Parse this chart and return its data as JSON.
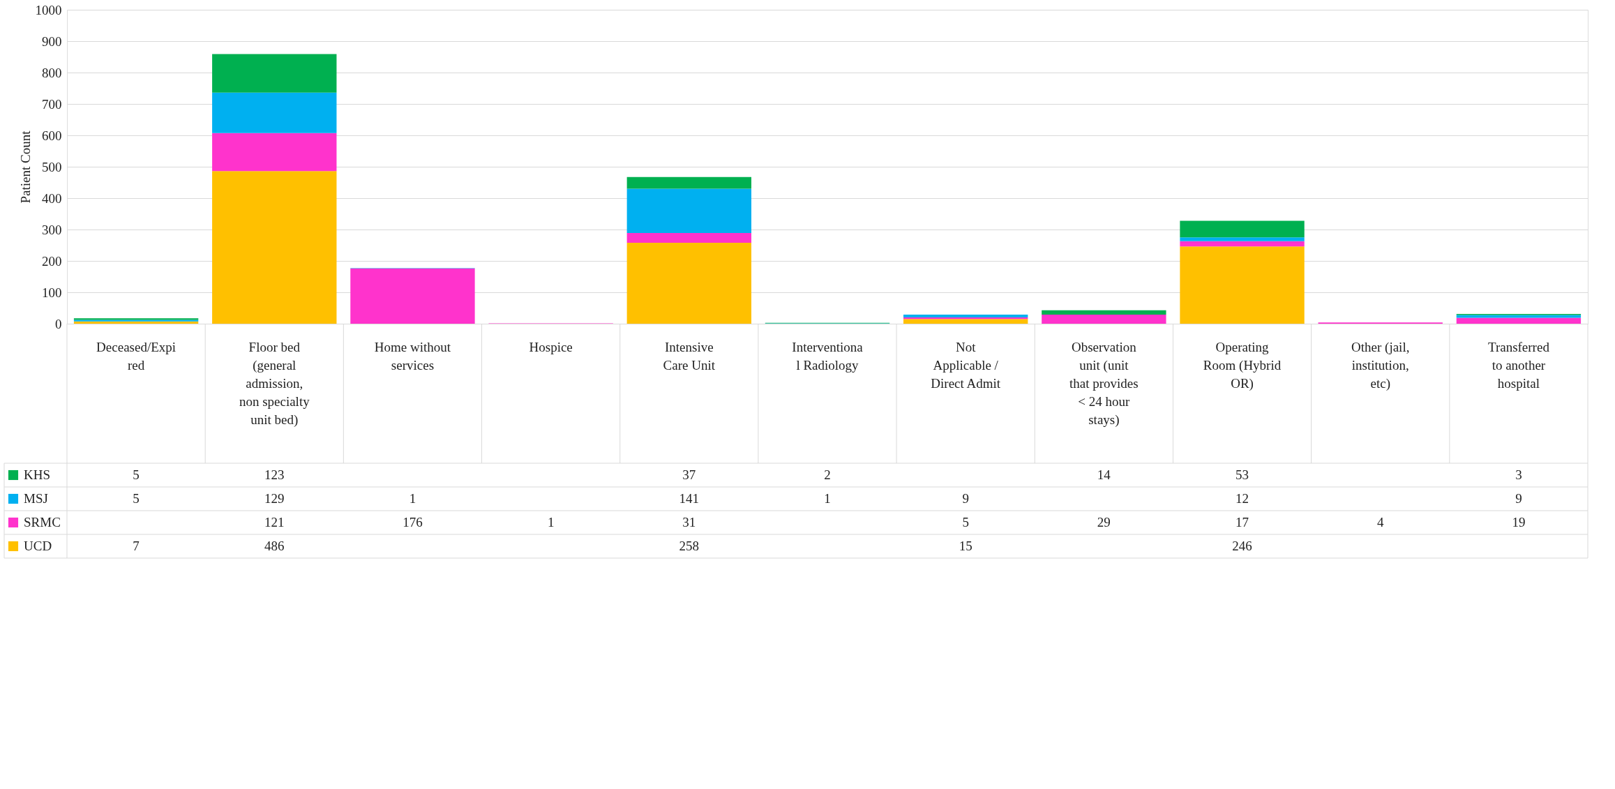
{
  "chart_data": {
    "type": "bar",
    "stacked": true,
    "ylabel": "Patient Count",
    "categories": [
      "Deceased/Expired",
      "Floor bed (general admission, non specialty unit bed)",
      "Home without services",
      "Hospice",
      "Intensive Care Unit",
      "Interventional Radiology",
      "Not Applicable / Direct Admit",
      "Observation unit (unit that provides < 24 hour stays)",
      "Operating Room (Hybrid OR)",
      "Other (jail, institution, etc)",
      "Transferred to another hospital"
    ],
    "series": [
      {
        "name": "UCD",
        "color": "#ffc000",
        "values": [
          7,
          486,
          null,
          null,
          258,
          null,
          15,
          null,
          246,
          null,
          null
        ]
      },
      {
        "name": "SRMC",
        "color": "#ff33cc",
        "values": [
          null,
          121,
          176,
          1,
          31,
          null,
          5,
          29,
          17,
          4,
          19
        ]
      },
      {
        "name": "MSJ",
        "color": "#00b0f0",
        "values": [
          5,
          129,
          1,
          null,
          141,
          1,
          9,
          null,
          12,
          null,
          9
        ]
      },
      {
        "name": "KHS",
        "color": "#00b050",
        "values": [
          5,
          123,
          null,
          null,
          37,
          2,
          null,
          14,
          53,
          null,
          3
        ]
      }
    ],
    "ylim": [
      0,
      1000
    ],
    "yticks": [
      0,
      100,
      200,
      300,
      400,
      500,
      600,
      700,
      800,
      900,
      1000
    ],
    "grid": "y",
    "legend": "bottom",
    "data_labels": true
  }
}
